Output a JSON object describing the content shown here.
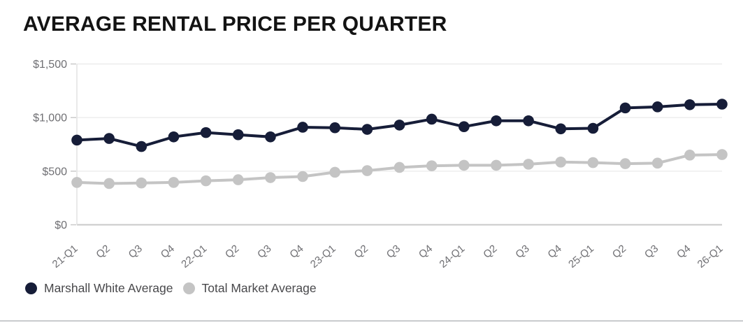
{
  "page": {
    "background": "#ffffff",
    "bottom_divider_color": "#c9cbce"
  },
  "chart_data": {
    "type": "line",
    "title": "AVERAGE RENTAL PRICE PER QUARTER",
    "xlabel": "",
    "ylabel": "",
    "categories": [
      "21-Q1",
      "Q2",
      "Q3",
      "Q4",
      "22-Q1",
      "Q2",
      "Q3",
      "Q4",
      "23-Q1",
      "Q2",
      "Q3",
      "Q4",
      "24-Q1",
      "Q2",
      "Q3",
      "Q4",
      "25-Q1",
      "Q2",
      "Q3",
      "Q4",
      "26-Q1"
    ],
    "series": [
      {
        "name": "Marshall White Average",
        "color": "#161d38",
        "values": [
          790,
          805,
          730,
          820,
          860,
          840,
          820,
          910,
          905,
          890,
          930,
          985,
          915,
          970,
          970,
          895,
          900,
          1090,
          1100,
          1120,
          1125
        ]
      },
      {
        "name": "Total Market Average",
        "color": "#c4c4c4",
        "values": [
          395,
          385,
          390,
          395,
          410,
          420,
          440,
          450,
          490,
          505,
          535,
          550,
          555,
          555,
          565,
          585,
          580,
          570,
          575,
          650,
          655
        ]
      }
    ],
    "ylim": [
      0,
      1500
    ],
    "y_ticks": [
      {
        "value": 0,
        "label": "$0"
      },
      {
        "value": 500,
        "label": "$500"
      },
      {
        "value": 1000,
        "label": "$1,000"
      },
      {
        "value": 1500,
        "label": "$1,500"
      }
    ],
    "grid": "horizontal",
    "legend_position": "bottom-left",
    "x_label_rotation_deg": -40,
    "colors": {
      "gridline": "#e9e9e9",
      "axis_line": "#c9c9c9",
      "tick_label": "#707074"
    }
  }
}
